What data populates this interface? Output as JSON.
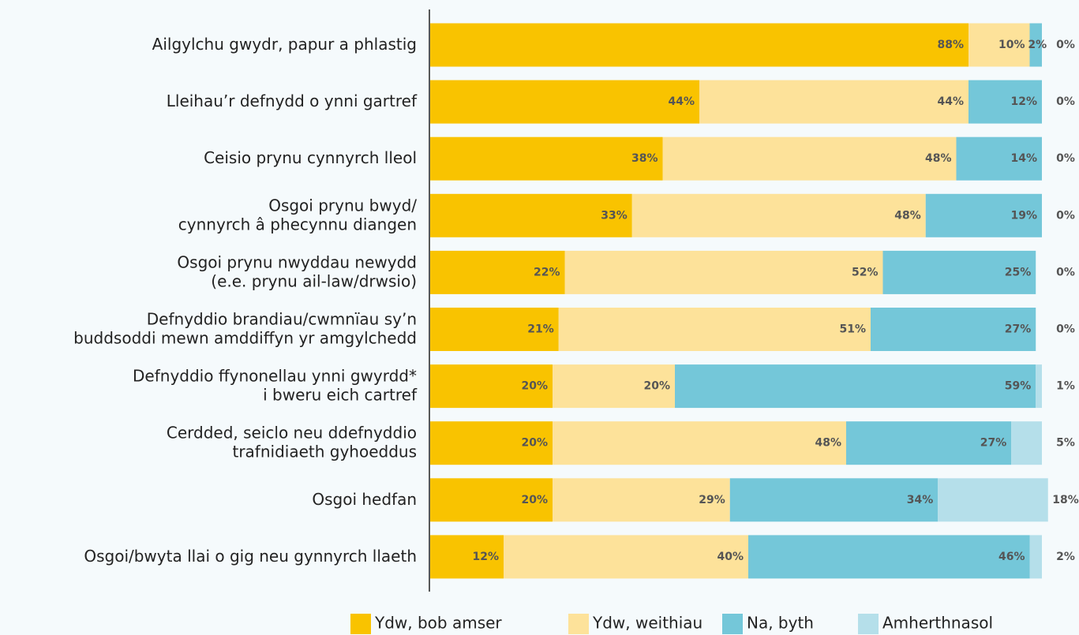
{
  "chart_data": {
    "type": "stacked_barh",
    "categories": [
      [
        "Ailgylchu gwydr, papur a phlastig"
      ],
      [
        "Lleihau’r defnydd o ynni gartref"
      ],
      [
        "Ceisio prynu cynnyrch lleol"
      ],
      [
        "Osgoi prynu bwyd/",
        "cynnyrch â phecynnu diangen"
      ],
      [
        "Osgoi prynu nwyddau newydd",
        "(e.e. prynu ail-law/drwsio)"
      ],
      [
        "Defnyddio brandiau/cwmnïau sy’n",
        "buddsoddi mewn amddiffyn yr amgylchedd"
      ],
      [
        "Defnyddio ffynonellau ynni gwyrdd*",
        "i bweru eich cartref"
      ],
      [
        "Cerdded, seiclo neu ddefnyddio",
        "trafnidiaeth gyhoeddus"
      ],
      [
        "Osgoi hedfan"
      ],
      [
        "Osgoi/bwyta llai o gig neu gynnyrch llaeth"
      ]
    ],
    "series": [
      {
        "name": "Ydw, bob amser",
        "color": "#f9c300",
        "values": [
          88,
          44,
          38,
          33,
          22,
          21,
          20,
          20,
          20,
          12
        ],
        "value_labels": [
          "88%",
          "44%",
          "38%",
          "33%",
          "22%",
          "21%",
          "20%",
          "20%",
          "20%",
          "12%"
        ]
      },
      {
        "name": "Ydw, weithiau",
        "color": "#fde29a",
        "values": [
          10,
          44,
          48,
          48,
          52,
          51,
          20,
          48,
          29,
          40
        ],
        "value_labels": [
          "10%",
          "44%",
          "48%",
          "48%",
          "52%",
          "51%",
          "20%",
          "48%",
          "29%",
          "40%"
        ]
      },
      {
        "name": "Na, byth",
        "color": "#74c7d9",
        "values": [
          2,
          12,
          14,
          19,
          25,
          27,
          59,
          27,
          34,
          46
        ],
        "value_labels": [
          "2%",
          "12%",
          "14%",
          "19%",
          "25%",
          "27%",
          "59%",
          "27%",
          "34%",
          "46%"
        ]
      },
      {
        "name": "Amherthnasol",
        "color": "#b5dfea",
        "values": [
          0,
          0,
          0,
          0,
          0,
          0,
          1,
          5,
          18,
          2
        ],
        "value_labels": [
          "0%",
          "0%",
          "0%",
          "0%",
          "0%",
          "0%",
          "1%",
          "5%",
          "18%",
          "2%"
        ]
      }
    ]
  }
}
